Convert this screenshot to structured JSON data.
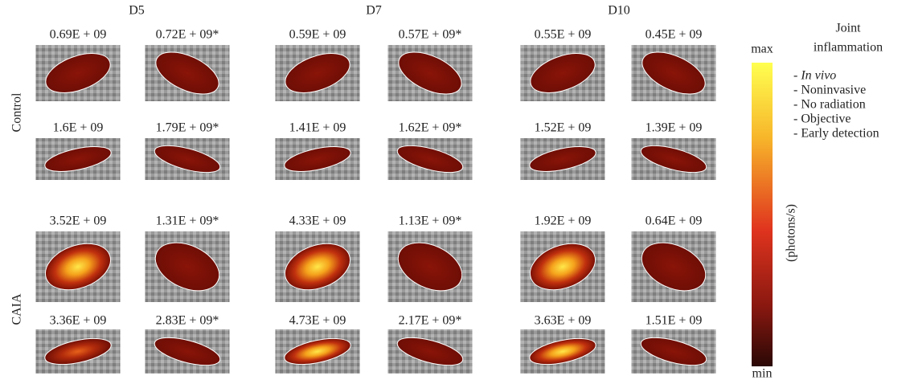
{
  "columns": [
    "D5",
    "D7",
    "D10"
  ],
  "groups": [
    {
      "label": "Control",
      "rows": [
        [
          "0.69E + 09",
          "0.72E + 09*",
          "0.59E + 09",
          "0.57E + 09*",
          "0.55E + 09",
          "0.45E + 09"
        ],
        [
          "1.6E + 09",
          "1.79E + 09*",
          "1.41E + 09",
          "1.62E + 09*",
          "1.52E + 09",
          "1.39E + 09"
        ]
      ]
    },
    {
      "label": "CAIA",
      "rows": [
        [
          "3.52E + 09",
          "1.31E + 09*",
          "4.33E + 09",
          "1.13E + 09*",
          "1.92E + 09",
          "0.64E + 09"
        ],
        [
          "3.36E + 09",
          "2.83E + 09*",
          "4.73E + 09",
          "2.17E + 09*",
          "3.63E + 09",
          "1.51E + 09"
        ]
      ]
    }
  ],
  "colorbar": {
    "max": "max",
    "min": "min",
    "unit": "(photons/s)"
  },
  "legend": {
    "title": [
      "Joint",
      "inflammation"
    ],
    "items": [
      "- In vivo",
      "- Noninvasive",
      "- No radiation",
      "- Objective",
      "- Early detection"
    ]
  }
}
